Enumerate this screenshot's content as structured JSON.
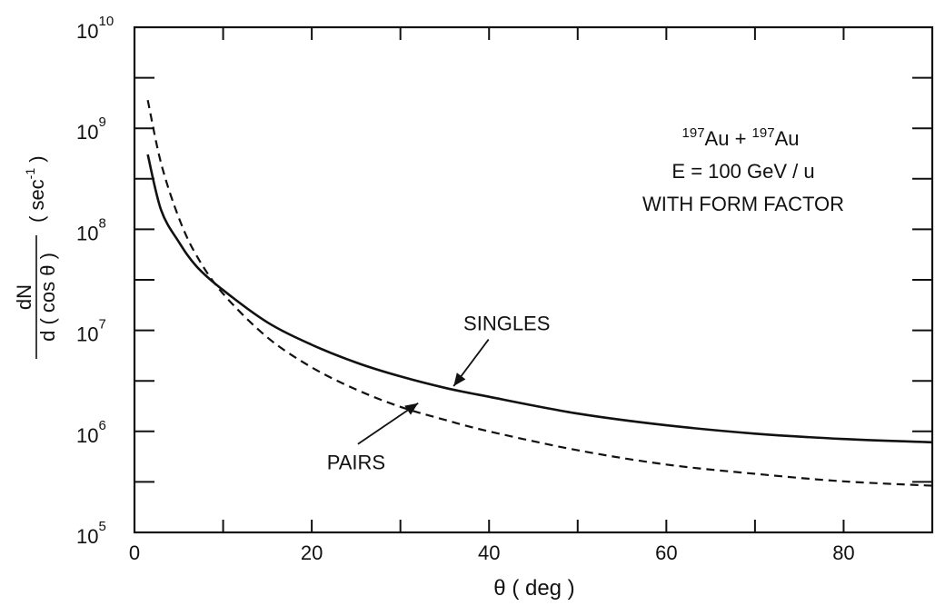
{
  "chart_data": {
    "type": "line",
    "xlabel": "θ ( deg )",
    "ylabel": {
      "numerator": "dN",
      "denominator": "d ( cos θ )",
      "unit": "( sec",
      "unit_exp": "-1",
      "unit_close": " )"
    },
    "xlim": [
      0,
      90
    ],
    "ylim": [
      100000,
      10000000000
    ],
    "yscale": "log",
    "x_ticks": [
      {
        "value": 0,
        "label": "0"
      },
      {
        "value": 20,
        "label": "20"
      },
      {
        "value": 40,
        "label": "40"
      },
      {
        "value": 60,
        "label": "60"
      },
      {
        "value": 80,
        "label": "80"
      }
    ],
    "y_ticks": [
      {
        "value": 100000,
        "base": "10",
        "exp": "5"
      },
      {
        "value": 1000000,
        "base": "10",
        "exp": "6"
      },
      {
        "value": 10000000,
        "base": "10",
        "exp": "7"
      },
      {
        "value": 100000000,
        "base": "10",
        "exp": "8"
      },
      {
        "value": 1000000000,
        "base": "10",
        "exp": "9"
      },
      {
        "value": 10000000000,
        "base": "10",
        "exp": "10"
      }
    ],
    "annotation": {
      "line1": {
        "sup1": "197",
        "t1": "Au + ",
        "sup2": "197",
        "t2": "Au"
      },
      "line2": "E = 100 GeV / u",
      "line3": "WITH FORM FACTOR"
    },
    "series": [
      {
        "name": "SINGLES",
        "style": "solid",
        "x": [
          1.5,
          3,
          5,
          7,
          10,
          15,
          20,
          25,
          30,
          35,
          40,
          50,
          60,
          70,
          80,
          90
        ],
        "y": [
          550000000,
          155000000,
          75000000,
          43000000,
          25000000,
          12000000,
          7200000,
          4800000,
          3500000,
          2700000,
          2200000,
          1500000,
          1150000,
          950000,
          840000,
          780000
        ]
      },
      {
        "name": "PAIRS",
        "style": "dashed",
        "x": [
          1.5,
          3,
          5,
          7,
          10,
          15,
          20,
          25,
          30,
          35,
          40,
          50,
          60,
          70,
          80,
          90
        ],
        "y": [
          1900000000,
          450000000,
          130000000,
          55000000,
          23000000,
          8500000,
          4300000,
          2600000,
          1750000,
          1300000,
          1000000,
          650000,
          470000,
          380000,
          320000,
          290000
        ]
      }
    ],
    "label_arrows": [
      {
        "text": "SINGLES",
        "label_x": 42,
        "label_y": 10000000,
        "tip_x": 36,
        "tip_y": 2800000
      },
      {
        "text": "PAIRS",
        "label_x": 25,
        "label_y": 420000,
        "tip_x": 32,
        "tip_y": 1900000
      }
    ]
  }
}
